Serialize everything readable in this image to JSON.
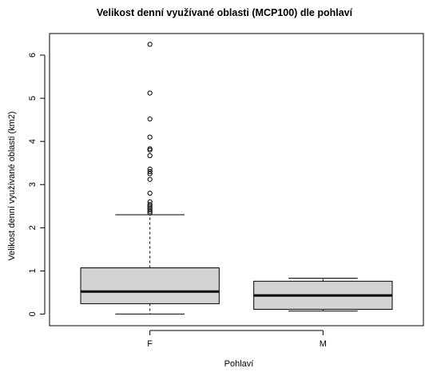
{
  "chart_data": {
    "type": "boxplot",
    "title": "Velikost denní využívané oblasti (MCP100) dle pohlaví",
    "xlabel": "Pohlaví",
    "ylabel": "Velikost denní využívané oblasti (km2)",
    "categories": [
      "F",
      "M"
    ],
    "ylim": [
      -0.27,
      6.5
    ],
    "yticks": [
      0,
      1,
      2,
      3,
      4,
      5,
      6
    ],
    "box_fill": "#d3d3d3",
    "boxes": [
      {
        "name": "F",
        "whisker_low": 0.0,
        "q1": 0.24,
        "median": 0.52,
        "q3": 1.07,
        "whisker_high": 2.3,
        "outliers": [
          2.34,
          2.38,
          2.42,
          2.46,
          2.5,
          2.54,
          2.6,
          2.8,
          3.12,
          3.25,
          3.3,
          3.36,
          3.67,
          3.8,
          3.83,
          4.1,
          4.52,
          5.12,
          6.25
        ]
      },
      {
        "name": "M",
        "whisker_low": 0.07,
        "q1": 0.11,
        "median": 0.43,
        "q3": 0.76,
        "whisker_high": 0.83,
        "outliers": []
      }
    ]
  }
}
